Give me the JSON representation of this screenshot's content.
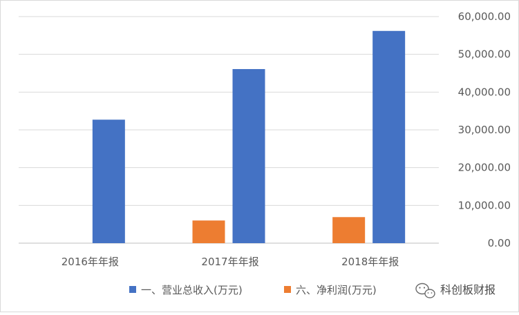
{
  "chart_data": {
    "type": "bar",
    "categories": [
      "2016年年报",
      "2017年年报",
      "2018年年报"
    ],
    "series": [
      {
        "name": "一、营业总收入(万元)",
        "values": [
          32700,
          46100,
          56200
        ],
        "color": "#4472c4"
      },
      {
        "name": "六、净利润(万元)",
        "values": [
          0,
          6000,
          6900
        ],
        "color": "#ed7d31"
      }
    ],
    "yaxis": {
      "position": "right",
      "ticks": [
        "0.00",
        "10,000.00",
        "20,000.00",
        "30,000.00",
        "40,000.00",
        "50,000.00",
        "60,000.00"
      ],
      "ylim": [
        0,
        60000
      ]
    },
    "grid": true,
    "legend": "bottom"
  },
  "watermark": {
    "text": "科创板财报",
    "icon": "wechat-icon"
  }
}
